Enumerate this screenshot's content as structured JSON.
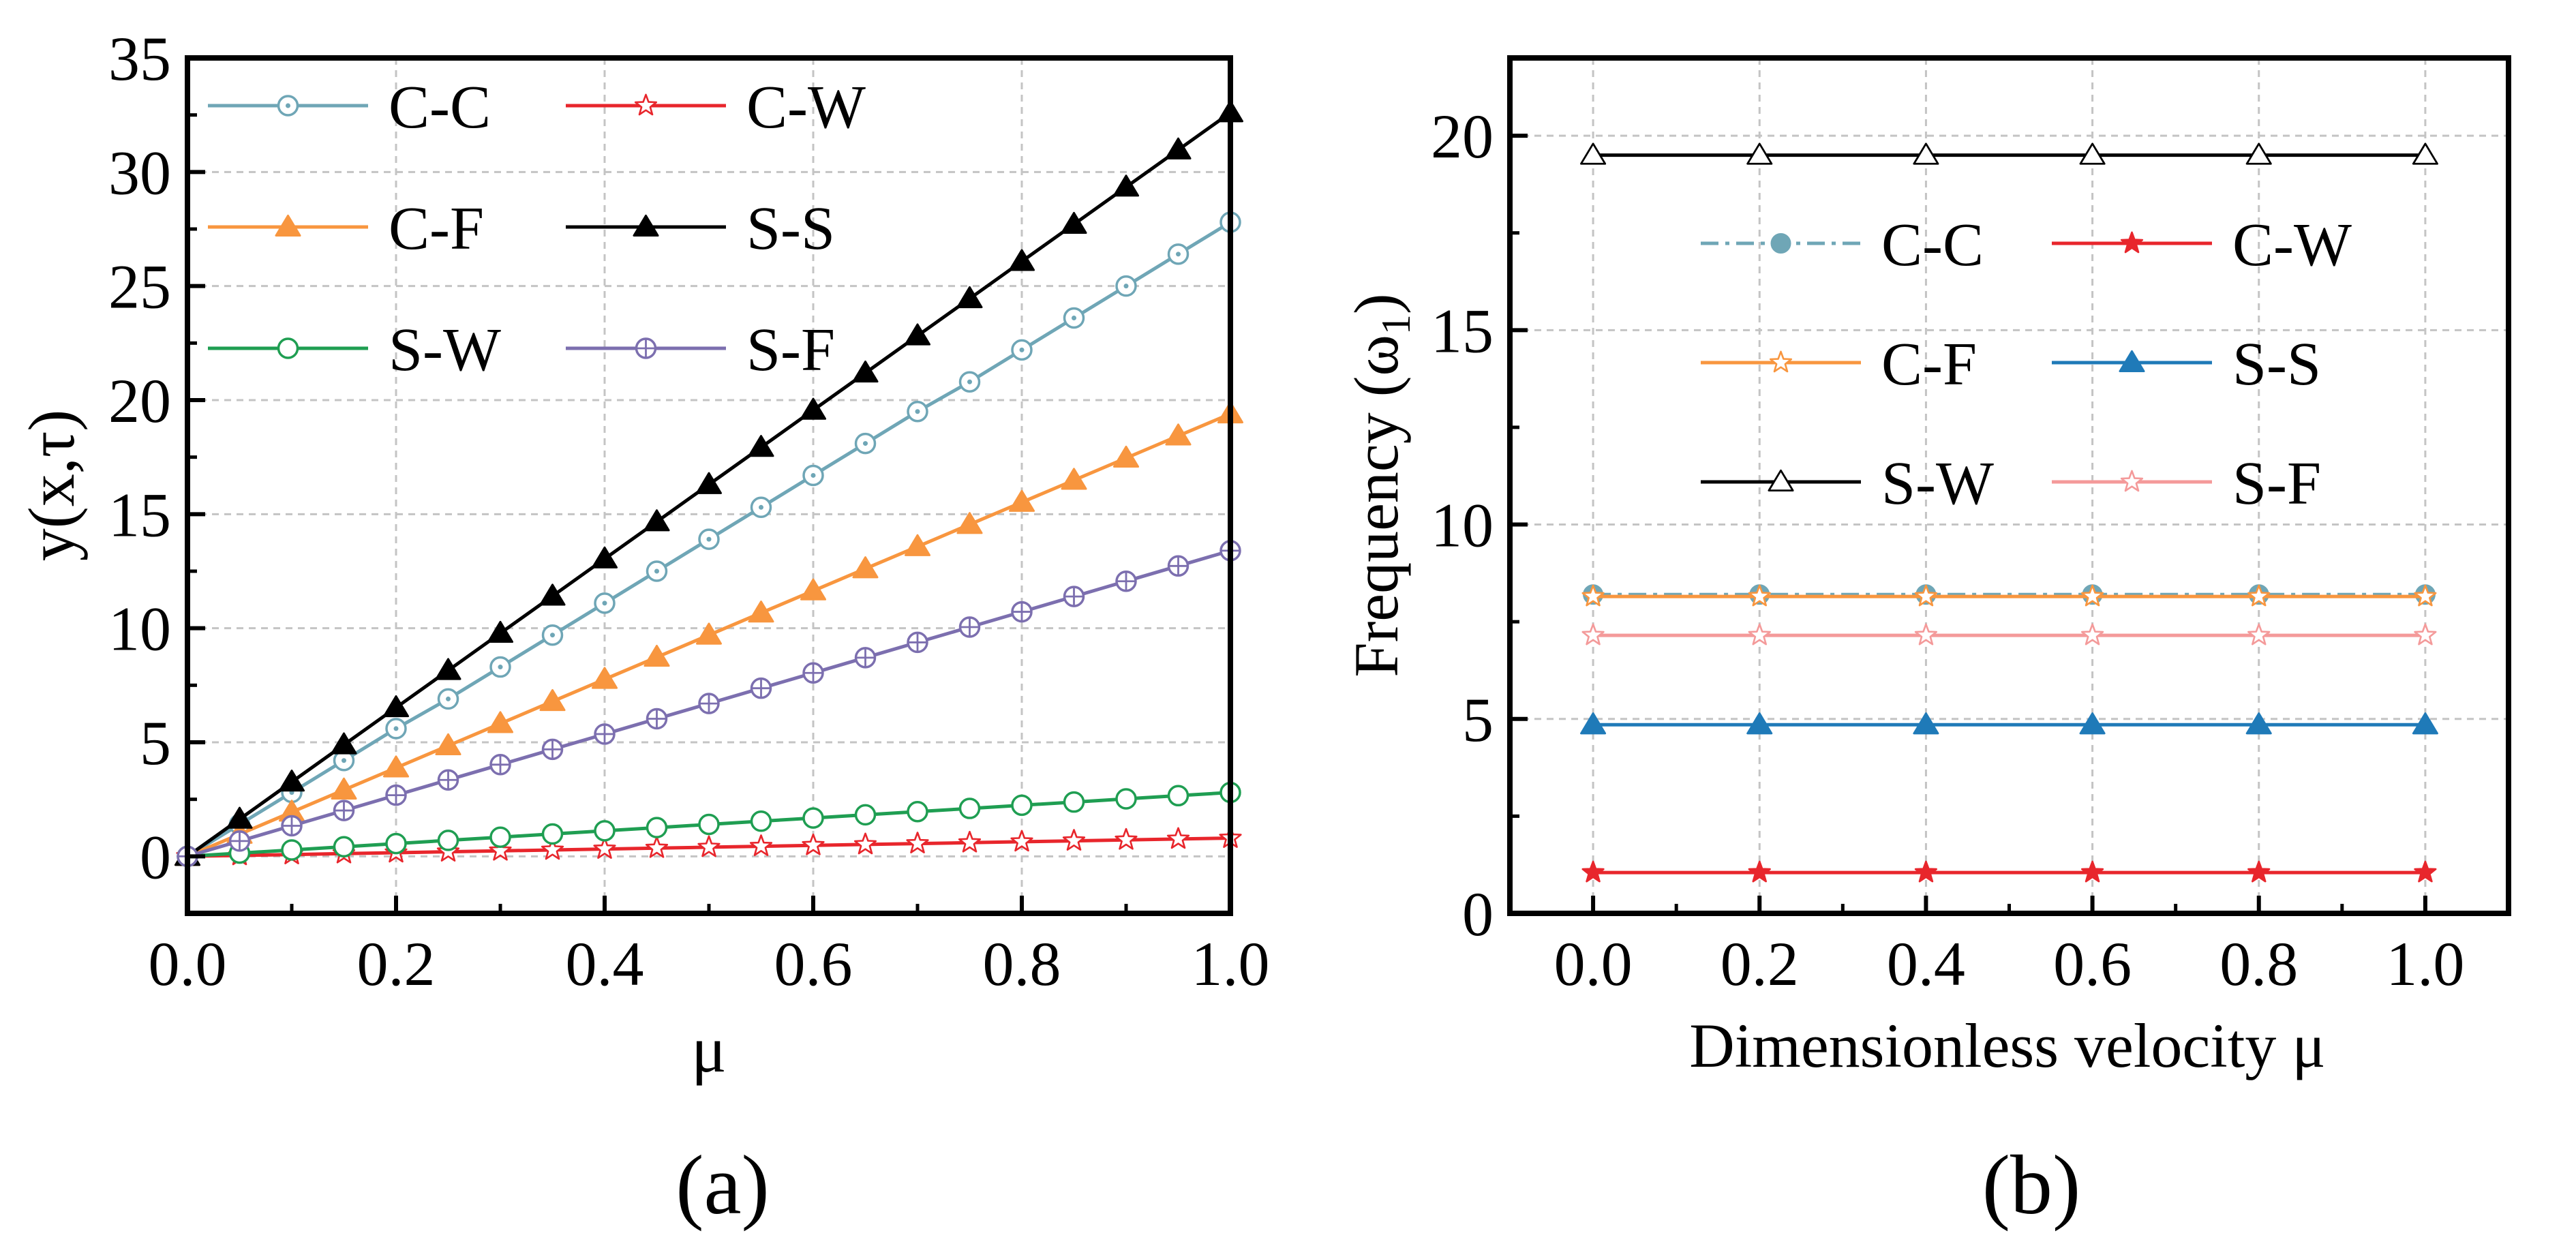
{
  "chart_data": [
    {
      "panel_label": "(a)",
      "type": "line",
      "title": "",
      "xlabel": "μ",
      "ylabel_main": "y(x,τ)",
      "xlim": [
        0,
        1
      ],
      "ylim": [
        -2.5,
        35
      ],
      "xticks": [
        "0.0",
        "0.2",
        "0.4",
        "0.6",
        "0.8",
        "1.0"
      ],
      "yticks": [
        "0",
        "5",
        "10",
        "15",
        "20",
        "25",
        "30",
        "35"
      ],
      "grid": true,
      "legend_position": "top-left",
      "x": [
        0,
        0.05,
        0.1,
        0.15,
        0.2,
        0.25,
        0.3,
        0.35,
        0.4,
        0.45,
        0.5,
        0.55,
        0.6,
        0.65,
        0.7,
        0.75,
        0.8,
        0.85,
        0.9,
        0.95,
        1.0
      ],
      "series": [
        {
          "name": "C-C",
          "color": "#6FA6B6",
          "marker": "circle-dot",
          "values": [
            0,
            1.4,
            2.8,
            4.2,
            5.6,
            6.9,
            8.3,
            9.7,
            11.1,
            12.5,
            13.9,
            15.3,
            16.7,
            18.1,
            19.5,
            20.8,
            22.2,
            23.6,
            25.0,
            26.4,
            27.8
          ]
        },
        {
          "name": "C-W",
          "color": "#E8262C",
          "marker": "star-open",
          "values": [
            0,
            0.04,
            0.08,
            0.12,
            0.16,
            0.2,
            0.24,
            0.28,
            0.32,
            0.36,
            0.4,
            0.44,
            0.48,
            0.52,
            0.56,
            0.6,
            0.64,
            0.68,
            0.72,
            0.76,
            0.8
          ]
        },
        {
          "name": "C-F",
          "color": "#F8963F",
          "marker": "triangle-filled",
          "values": [
            0,
            0.97,
            1.94,
            2.91,
            3.88,
            4.85,
            5.82,
            6.79,
            7.76,
            8.73,
            9.7,
            10.67,
            11.64,
            12.61,
            13.58,
            14.55,
            15.52,
            16.49,
            17.46,
            18.43,
            19.4
          ]
        },
        {
          "name": "S-S",
          "color": "#000000",
          "marker": "triangle-filled",
          "values": [
            0,
            1.63,
            3.26,
            4.89,
            6.52,
            8.15,
            9.78,
            11.41,
            13.04,
            14.67,
            16.3,
            17.93,
            19.56,
            21.19,
            22.82,
            24.45,
            26.08,
            27.71,
            29.34,
            30.97,
            32.6
          ]
        },
        {
          "name": "S-W",
          "color": "#1F9E52",
          "marker": "circle-open",
          "values": [
            0,
            0.14,
            0.28,
            0.42,
            0.56,
            0.7,
            0.84,
            0.98,
            1.12,
            1.26,
            1.4,
            1.54,
            1.68,
            1.82,
            1.96,
            2.1,
            2.24,
            2.38,
            2.52,
            2.66,
            2.8
          ]
        },
        {
          "name": "S-F",
          "color": "#7C6FAF",
          "marker": "circle-plus",
          "values": [
            0,
            0.67,
            1.34,
            2.01,
            2.68,
            3.35,
            4.02,
            4.69,
            5.36,
            6.03,
            6.7,
            7.37,
            8.04,
            8.71,
            9.38,
            10.05,
            10.72,
            11.39,
            12.06,
            12.73,
            13.4
          ]
        }
      ]
    },
    {
      "panel_label": "(b)",
      "type": "line",
      "title": "",
      "xlabel": "Dimensionless velocity μ",
      "ylabel_main": "Frequency (ω",
      "ylabel_sub": "1",
      "ylabel_end": ")",
      "xlim": [
        -0.1,
        1.1
      ],
      "ylim": [
        0,
        22
      ],
      "xticks": [
        "0.0",
        "0.2",
        "0.4",
        "0.6",
        "0.8",
        "1.0"
      ],
      "yticks": [
        "0",
        "5",
        "10",
        "15",
        "20"
      ],
      "grid": true,
      "legend_position": "center",
      "x": [
        0,
        0.2,
        0.4,
        0.6,
        0.8,
        1.0
      ],
      "series": [
        {
          "name": "C-C",
          "color": "#6FA6B6",
          "marker": "circle-filled",
          "dash": "dashdot",
          "values": [
            8.2,
            8.2,
            8.2,
            8.2,
            8.2,
            8.2
          ]
        },
        {
          "name": "C-W",
          "color": "#E8262C",
          "marker": "star-filled",
          "values": [
            1.05,
            1.05,
            1.05,
            1.05,
            1.05,
            1.05
          ]
        },
        {
          "name": "C-F",
          "color": "#F8963F",
          "marker": "star-open",
          "values": [
            8.15,
            8.15,
            8.15,
            8.15,
            8.15,
            8.15
          ]
        },
        {
          "name": "S-S",
          "color": "#1F7AB8",
          "marker": "triangle-filled",
          "values": [
            4.85,
            4.85,
            4.85,
            4.85,
            4.85,
            4.85
          ]
        },
        {
          "name": "S-W",
          "color": "#000000",
          "marker": "triangle-open",
          "values": [
            19.5,
            19.5,
            19.5,
            19.5,
            19.5,
            19.5
          ]
        },
        {
          "name": "S-F",
          "color": "#F49A9A",
          "marker": "star-open",
          "values": [
            7.15,
            7.15,
            7.15,
            7.15,
            7.15,
            7.15
          ]
        }
      ]
    }
  ]
}
